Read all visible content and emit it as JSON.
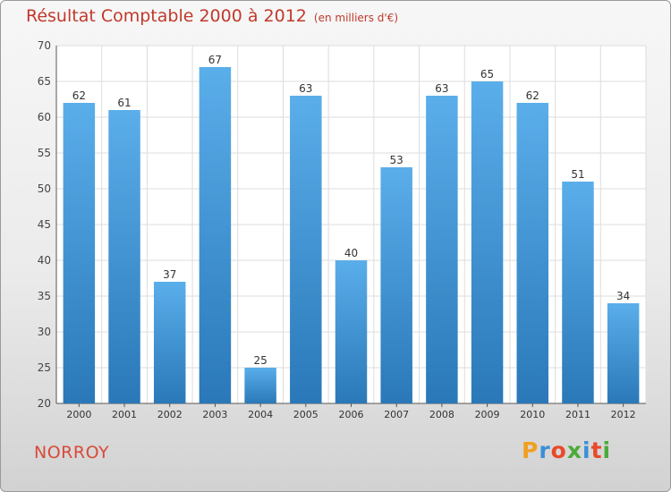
{
  "chart_data": {
    "type": "bar",
    "title": "Résultat Comptable 2000 à 2012",
    "subtitle": "(en milliers d'€)",
    "categories": [
      "2000",
      "2001",
      "2002",
      "2003",
      "2004",
      "2005",
      "2006",
      "2007",
      "2008",
      "2009",
      "2010",
      "2011",
      "2012"
    ],
    "values": [
      62,
      61,
      37,
      67,
      25,
      63,
      40,
      53,
      63,
      65,
      62,
      51,
      34
    ],
    "xlabel": "",
    "ylabel": "",
    "ylim": [
      20,
      70
    ],
    "yticks": [
      20,
      25,
      30,
      35,
      40,
      45,
      50,
      55,
      60,
      65,
      70
    ],
    "grid": true,
    "bar_color": "#4a9ede"
  },
  "footer": {
    "place": "NORROY",
    "brand_letters": [
      "P",
      "r",
      "o",
      "x",
      "i",
      "t",
      "i"
    ],
    "brand_colors": [
      "#f0a020",
      "#3a8fd8",
      "#e84a2a",
      "#4aaa3a",
      "#3a8fd8",
      "#e84a2a",
      "#4aaa3a"
    ]
  }
}
